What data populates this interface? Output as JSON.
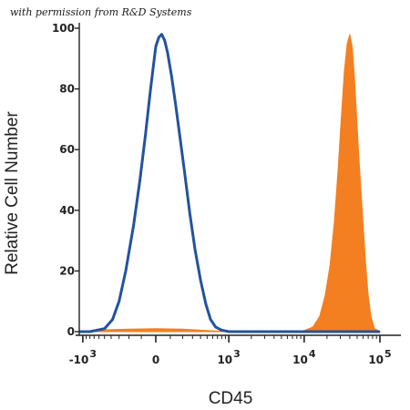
{
  "credit": "with permission from R&D Systems",
  "chart_data": {
    "type": "area",
    "xlabel": "CD45",
    "ylabel": "Relative Cell Number",
    "x_scale": "biexponential",
    "ylim": [
      0,
      100
    ],
    "yticks": [
      0,
      20,
      40,
      60,
      80,
      100
    ],
    "xticks": [
      {
        "base": "-10",
        "exp": "3",
        "value": -1000
      },
      {
        "base": "0",
        "exp": "",
        "value": 0
      },
      {
        "base": "10",
        "exp": "3",
        "value": 1000
      },
      {
        "base": "10",
        "exp": "4",
        "value": 10000
      },
      {
        "base": "10",
        "exp": "5",
        "value": 100000
      }
    ],
    "grid": false,
    "series": [
      {
        "style": "outline",
        "color": "#2352a0",
        "points": [
          [
            -3000,
            0
          ],
          [
            -800,
            0
          ],
          [
            -500,
            1
          ],
          [
            -380,
            4
          ],
          [
            -300,
            10
          ],
          [
            -230,
            20
          ],
          [
            -160,
            35
          ],
          [
            -110,
            50
          ],
          [
            -70,
            65
          ],
          [
            -40,
            78
          ],
          [
            -15,
            88
          ],
          [
            0,
            94
          ],
          [
            20,
            97
          ],
          [
            40,
            98
          ],
          [
            60,
            96
          ],
          [
            80,
            92
          ],
          [
            110,
            84
          ],
          [
            140,
            75
          ],
          [
            180,
            63
          ],
          [
            220,
            52
          ],
          [
            270,
            39
          ],
          [
            330,
            27
          ],
          [
            400,
            17
          ],
          [
            480,
            9
          ],
          [
            560,
            4
          ],
          [
            660,
            1.5
          ],
          [
            800,
            0.5
          ],
          [
            1000,
            0
          ],
          [
            100000,
            0
          ]
        ]
      },
      {
        "style": "filled",
        "color": "#f37f21",
        "points": [
          [
            -3000,
            0
          ],
          [
            -1000,
            0
          ],
          [
            -500,
            0.6
          ],
          [
            -200,
            0.8
          ],
          [
            0,
            1
          ],
          [
            200,
            0.8
          ],
          [
            500,
            0.4
          ],
          [
            1000,
            0
          ],
          [
            8000,
            0
          ],
          [
            10000,
            0.4
          ],
          [
            13000,
            1.5
          ],
          [
            16000,
            5
          ],
          [
            19000,
            12
          ],
          [
            22000,
            22
          ],
          [
            25000,
            36
          ],
          [
            28000,
            53
          ],
          [
            31000,
            71
          ],
          [
            34000,
            86
          ],
          [
            37000,
            95
          ],
          [
            40000,
            98
          ],
          [
            43000,
            94
          ],
          [
            46000,
            84
          ],
          [
            49000,
            72
          ],
          [
            52000,
            60
          ],
          [
            56000,
            47
          ],
          [
            60000,
            35
          ],
          [
            65000,
            22
          ],
          [
            70000,
            12
          ],
          [
            76000,
            5
          ],
          [
            85000,
            1
          ],
          [
            100000,
            0
          ]
        ]
      }
    ]
  }
}
